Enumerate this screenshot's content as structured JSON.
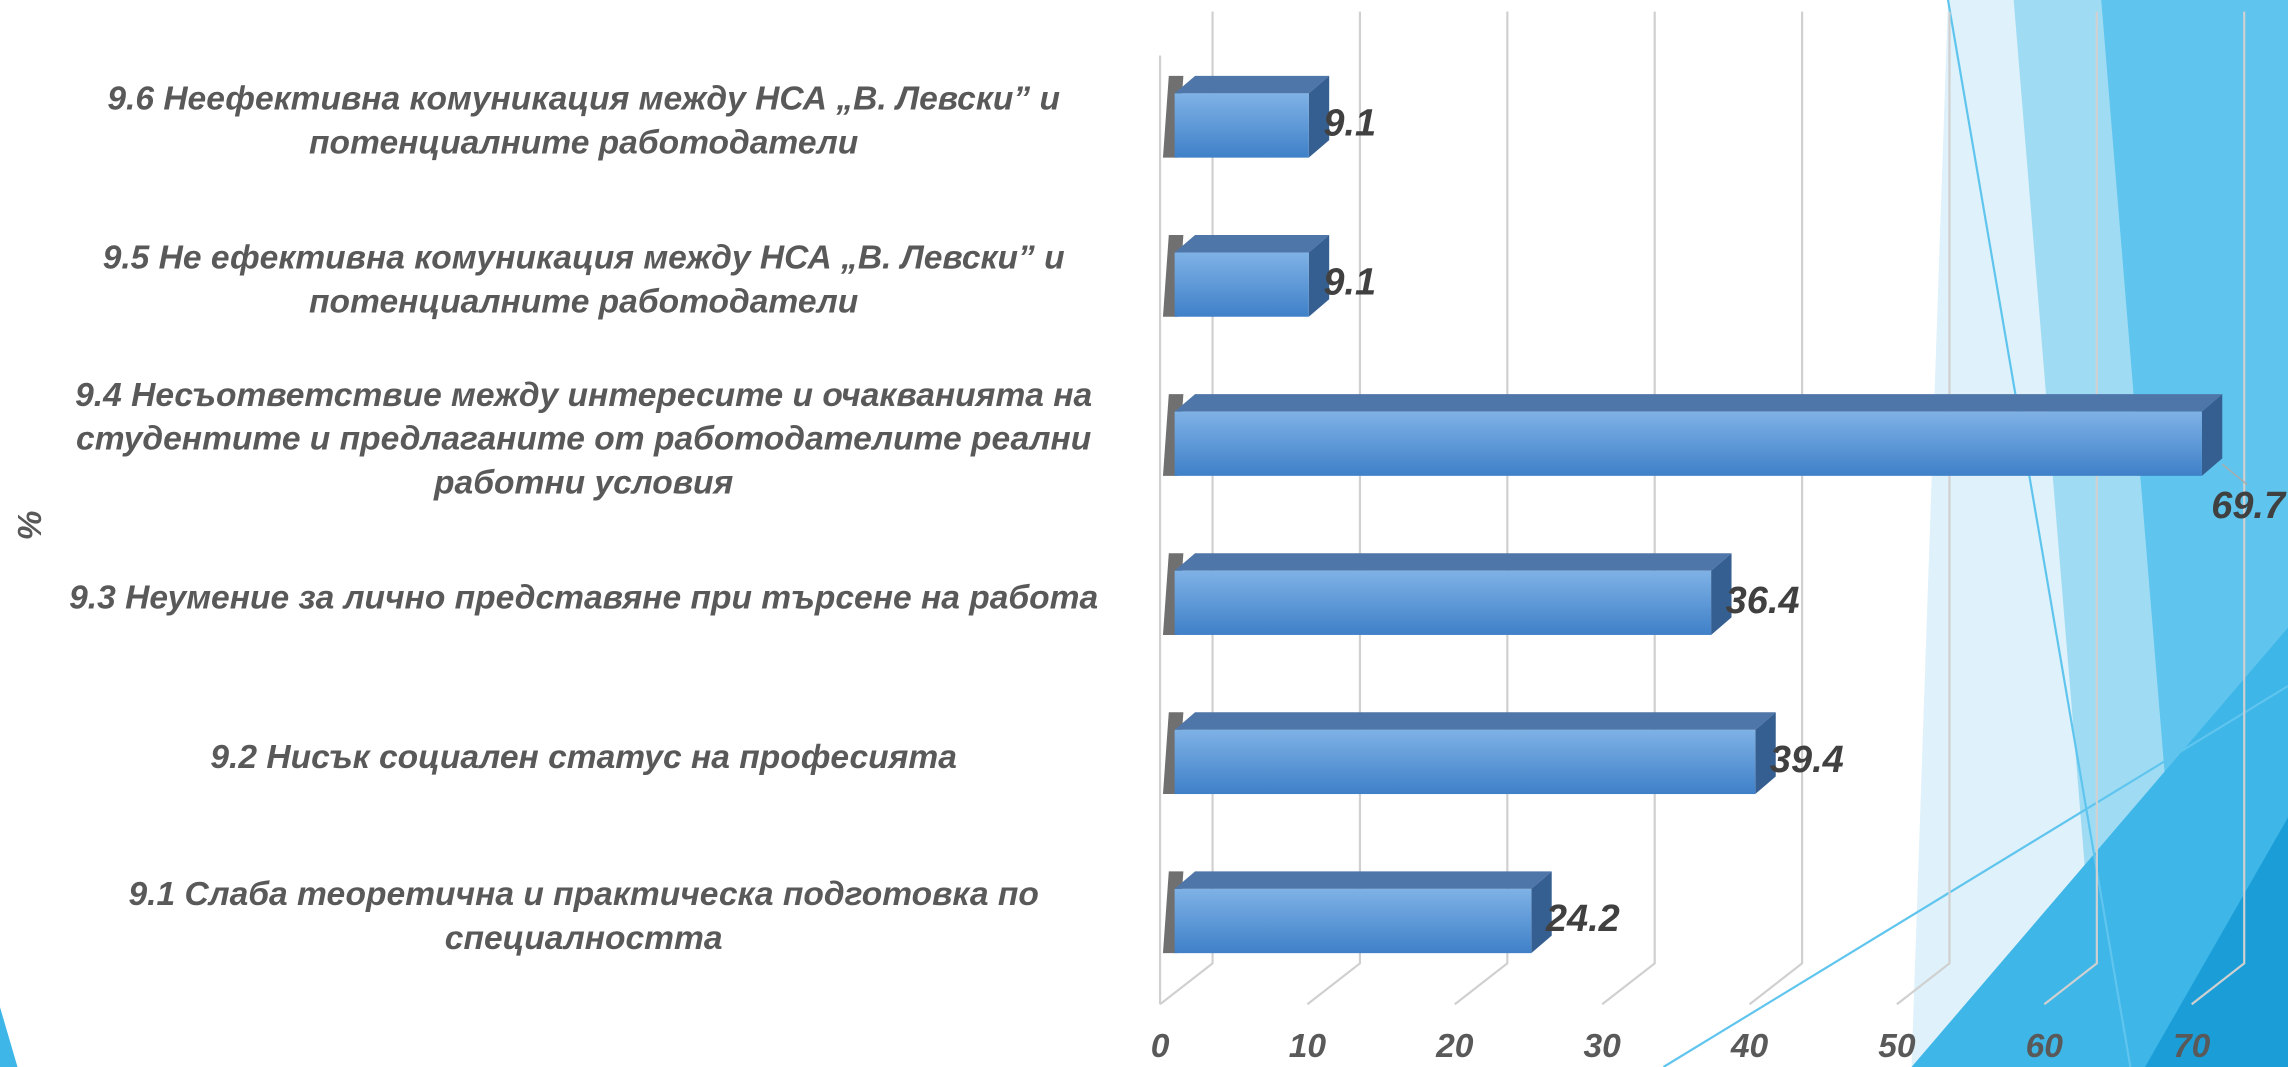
{
  "chart_data": {
    "type": "bar",
    "orientation": "horizontal",
    "categories": [
      "9.1 Слаба теоретична и практическа подготовка по специалността",
      "9.2 Нисък социален статус на професията",
      "9.3 Неумение за лично представяне при търсене на работа",
      "9.4 Несъответствие между интересите и очакванията на студентите и предлаганите от работодателите реални работни условия",
      "9.5 Не ефективна комуникация между НСА „В. Левски” и потенциалните работодатели",
      "9.6 Неефективна комуникация между НСА „В. Левски” и потенциалните работодатели"
    ],
    "values": [
      24.2,
      39.4,
      36.4,
      69.7,
      9.1,
      9.1
    ],
    "color": "#4a8bd4",
    "ylabel": "%",
    "xlim": [
      0,
      70
    ],
    "xticks": [
      0,
      10,
      20,
      30,
      40,
      50,
      60,
      70
    ],
    "grid": true
  }
}
